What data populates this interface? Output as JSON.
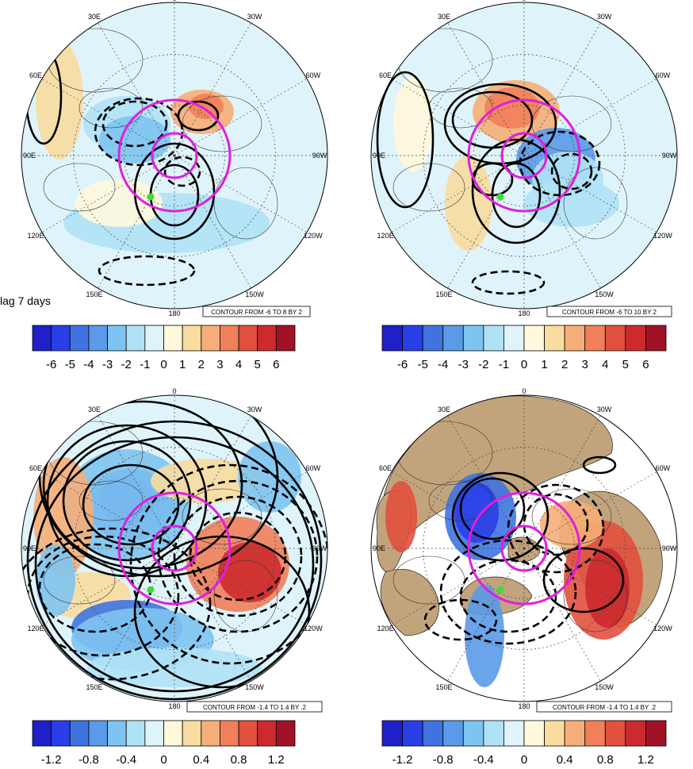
{
  "side_label": "lag 7 days",
  "lon_labels": {
    "top": "0",
    "ne": "30W",
    "e1": "60W",
    "e": "90W",
    "e2": "120W",
    "se": "150W",
    "bottom": "180",
    "sw": "150E",
    "w2": "120E",
    "w": "90E",
    "w1": "60E",
    "nw": "30E"
  },
  "panels": [
    {
      "id": "top-left",
      "contour_note": "CONTOUR FROM -6 TO 8 BY 2",
      "land": "none"
    },
    {
      "id": "top-right",
      "contour_note": "CONTOUR FROM -6 TO 10 BY 2",
      "land": "none"
    },
    {
      "id": "bottom-left",
      "contour_note": "CONTOUR FROM -1.4 TO 1.4 BY .2",
      "land": "none"
    },
    {
      "id": "bottom-right",
      "contour_note": "CONTOUR FROM -1.4 TO 1.4 BY .2",
      "land": "tan"
    }
  ],
  "colorbars": {
    "top": {
      "labels": [
        "-6",
        "-5",
        "-4",
        "-3",
        "-2",
        "-1",
        "0",
        "1",
        "2",
        "3",
        "4",
        "5",
        "6"
      ]
    },
    "bottom": {
      "labels": [
        "-1.2",
        "-0.8",
        "-0.4",
        "0",
        "0.4",
        "0.8",
        "1.2"
      ]
    },
    "colors": [
      "#2020c8",
      "#2a3ee8",
      "#3f74e0",
      "#5a9ae8",
      "#7ec4f0",
      "#b0e2f6",
      "#dff4fa",
      "#fff8dc",
      "#f8dca0",
      "#f6ae78",
      "#f0805a",
      "#e2503e",
      "#cc2a2e",
      "#a01226"
    ]
  },
  "colors": {
    "ring": "#e01ee0",
    "marker": "#3cdc3c",
    "land": "#c2a47c",
    "contour": "#000000"
  }
}
